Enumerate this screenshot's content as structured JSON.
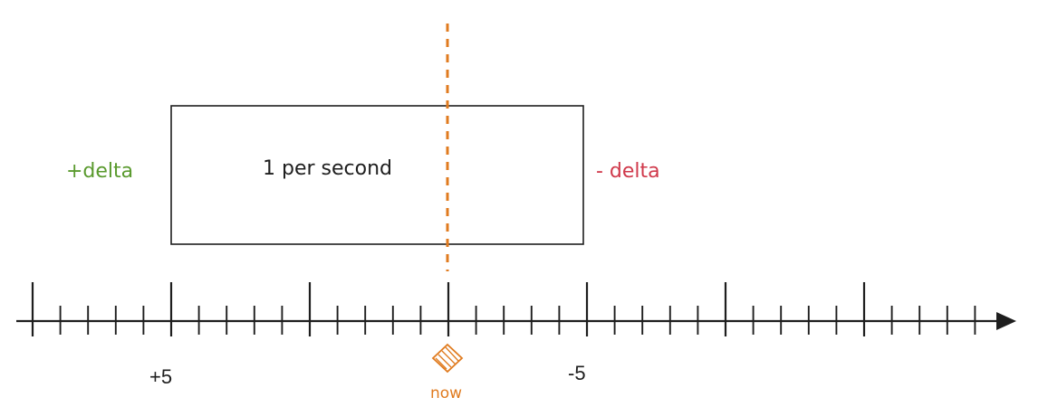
{
  "diagram": {
    "window_label": "1 per second",
    "left_label": "+delta",
    "right_label": "- delta",
    "now_label": "now",
    "tick_labels": [
      "+5",
      "-5"
    ],
    "colors": {
      "ink": "#1e1e1e",
      "now": "#e07b1f",
      "plus": "#5a9a2e",
      "minus": "#d0394b"
    }
  }
}
